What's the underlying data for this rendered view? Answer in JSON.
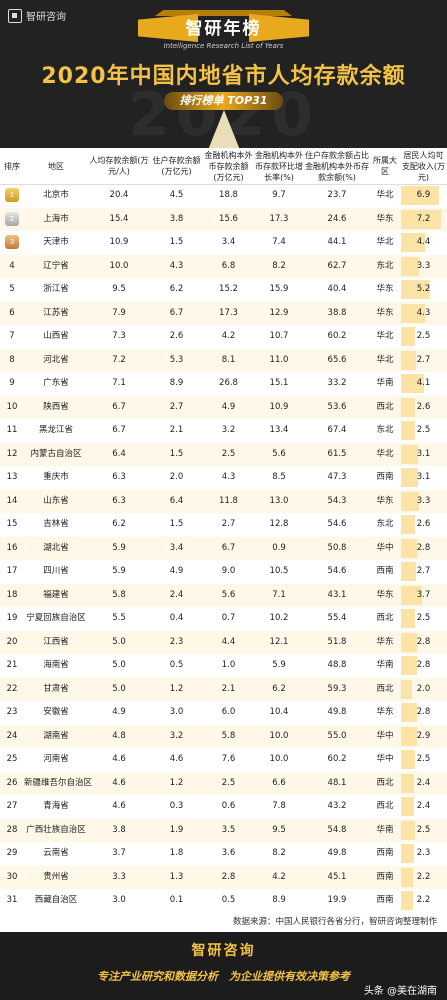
{
  "header": {
    "logo_text": "智研咨询",
    "brand_title": "智研年榜",
    "brand_subtitle": "Intelligence Research List of Years",
    "main_title": "2020年中国内地省市人均存款余额",
    "pill_label": "排行榜单  TOP31",
    "watermark": "2020"
  },
  "columns": [
    "排序",
    "地区",
    "人均存款余额(万元/人)",
    "住户存款余额(万亿元)",
    "金融机构本外币存款余额(万亿元)",
    "金融机构本外币存款环比增长率(%)",
    "住户存款余额占比金融机构本外币存款余额(%)",
    "所属大区",
    "居民人均可支配收入(万元)"
  ],
  "chart_data": {
    "type": "table",
    "title": "2020年中国内地省市人均存款余额",
    "rows": [
      [
        "1",
        "北京市",
        "20.4",
        "4.5",
        "18.8",
        "9.7",
        "23.7",
        "华北",
        "6.9"
      ],
      [
        "2",
        "上海市",
        "15.4",
        "3.8",
        "15.6",
        "17.3",
        "24.6",
        "华东",
        "7.2"
      ],
      [
        "3",
        "天津市",
        "10.9",
        "1.5",
        "3.4",
        "7.4",
        "44.1",
        "华北",
        "4.4"
      ],
      [
        "4",
        "辽宁省",
        "10.0",
        "4.3",
        "6.8",
        "8.2",
        "62.7",
        "东北",
        "3.3"
      ],
      [
        "5",
        "浙江省",
        "9.5",
        "6.2",
        "15.2",
        "15.9",
        "40.4",
        "华东",
        "5.2"
      ],
      [
        "6",
        "江苏省",
        "7.9",
        "6.7",
        "17.3",
        "12.9",
        "38.8",
        "华东",
        "4.3"
      ],
      [
        "7",
        "山西省",
        "7.3",
        "2.6",
        "4.2",
        "10.7",
        "60.2",
        "华北",
        "2.5"
      ],
      [
        "8",
        "河北省",
        "7.2",
        "5.3",
        "8.1",
        "11.0",
        "65.6",
        "华北",
        "2.7"
      ],
      [
        "9",
        "广东省",
        "7.1",
        "8.9",
        "26.8",
        "15.1",
        "33.2",
        "华南",
        "4.1"
      ],
      [
        "10",
        "陕西省",
        "6.7",
        "2.7",
        "4.9",
        "10.9",
        "53.6",
        "西北",
        "2.6"
      ],
      [
        "11",
        "黑龙江省",
        "6.7",
        "2.1",
        "3.2",
        "13.4",
        "67.4",
        "东北",
        "2.5"
      ],
      [
        "12",
        "内蒙古自治区",
        "6.4",
        "1.5",
        "2.5",
        "5.6",
        "61.5",
        "华北",
        "3.1"
      ],
      [
        "13",
        "重庆市",
        "6.3",
        "2.0",
        "4.3",
        "8.5",
        "47.3",
        "西南",
        "3.1"
      ],
      [
        "14",
        "山东省",
        "6.3",
        "6.4",
        "11.8",
        "13.0",
        "54.3",
        "华东",
        "3.3"
      ],
      [
        "15",
        "吉林省",
        "6.2",
        "1.5",
        "2.7",
        "12.8",
        "54.6",
        "东北",
        "2.6"
      ],
      [
        "16",
        "湖北省",
        "5.9",
        "3.4",
        "6.7",
        "0.9",
        "50.8",
        "华中",
        "2.8"
      ],
      [
        "17",
        "四川省",
        "5.9",
        "4.9",
        "9.0",
        "10.5",
        "54.6",
        "西南",
        "2.7"
      ],
      [
        "18",
        "福建省",
        "5.8",
        "2.4",
        "5.6",
        "7.1",
        "43.1",
        "华东",
        "3.7"
      ],
      [
        "19",
        "宁夏回族自治区",
        "5.5",
        "0.4",
        "0.7",
        "10.2",
        "55.4",
        "西北",
        "2.5"
      ],
      [
        "20",
        "江西省",
        "5.0",
        "2.3",
        "4.4",
        "12.1",
        "51.8",
        "华东",
        "2.8"
      ],
      [
        "21",
        "海南省",
        "5.0",
        "0.5",
        "1.0",
        "5.9",
        "48.8",
        "华南",
        "2.8"
      ],
      [
        "22",
        "甘肃省",
        "5.0",
        "1.2",
        "2.1",
        "6.2",
        "59.3",
        "西北",
        "2.0"
      ],
      [
        "23",
        "安徽省",
        "4.9",
        "3.0",
        "6.0",
        "10.4",
        "49.8",
        "华东",
        "2.8"
      ],
      [
        "24",
        "湖南省",
        "4.8",
        "3.2",
        "5.8",
        "10.0",
        "55.0",
        "华中",
        "2.9"
      ],
      [
        "25",
        "河南省",
        "4.6",
        "4.6",
        "7.6",
        "10.0",
        "60.2",
        "华中",
        "2.5"
      ],
      [
        "26",
        "新疆维吾尔自治区",
        "4.6",
        "1.2",
        "2.5",
        "6.6",
        "48.1",
        "西北",
        "2.4"
      ],
      [
        "27",
        "青海省",
        "4.6",
        "0.3",
        "0.6",
        "7.8",
        "43.2",
        "西北",
        "2.4"
      ],
      [
        "28",
        "广西壮族自治区",
        "3.8",
        "1.9",
        "3.5",
        "9.5",
        "54.8",
        "华南",
        "2.5"
      ],
      [
        "29",
        "云南省",
        "3.7",
        "1.8",
        "3.6",
        "8.2",
        "49.8",
        "西南",
        "2.3"
      ],
      [
        "30",
        "贵州省",
        "3.3",
        "1.3",
        "2.8",
        "4.2",
        "45.1",
        "西南",
        "2.2"
      ],
      [
        "31",
        "西藏自治区",
        "3.0",
        "0.1",
        "0.5",
        "8.9",
        "19.9",
        "西南",
        "2.2"
      ]
    ],
    "income_bar_max": 7.2
  },
  "source_text": "数据来源：中国人民银行各省分行，智研咨询整理制作",
  "footer": {
    "brand": "智研咨询",
    "slogan": "专注产业研究和数据分析　为企业提供有效决策参考",
    "credit": "头条 @美在湖南"
  },
  "colors": {
    "gold": "#f3c247",
    "dark_bg": "#1c1c1c",
    "row_alt": "#fff8e8",
    "bar": "#fbe3a6"
  }
}
